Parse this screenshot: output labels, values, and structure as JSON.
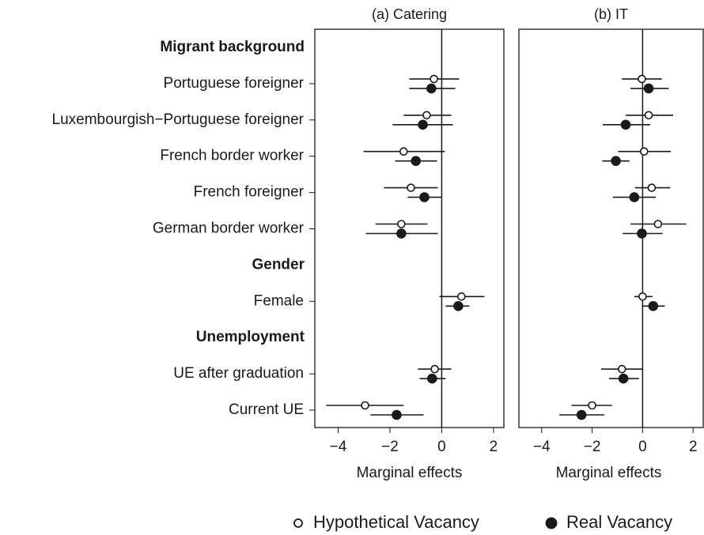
{
  "chart_data": {
    "type": "dotplot",
    "groups": [
      {
        "label": "Migrant background",
        "categories": [
          "Portuguese foreigner",
          "Luxembourgish−Portuguese foreigner",
          "French border worker",
          "French foreigner",
          "German border worker"
        ]
      },
      {
        "label": "Gender",
        "categories": [
          "Female"
        ]
      },
      {
        "label": "Unemployment",
        "categories": [
          "UE after graduation",
          "Current UE"
        ]
      }
    ],
    "xlim": [
      -4.9,
      2.4
    ],
    "xticks": [
      {
        "value": -4,
        "label": "−4"
      },
      {
        "value": -2,
        "label": "−2"
      },
      0,
      2
    ],
    "xlabel": "Marginal effects",
    "panels": [
      {
        "title": "(a) Catering",
        "series": [
          {
            "name": "Hypothetical Vacancy",
            "marker": "open",
            "color": "#1a1a1a",
            "values": [
              -0.3,
              -0.58,
              -1.47,
              -1.19,
              -1.56,
              0.76,
              -0.27,
              -2.96
            ],
            "lower": [
              -1.25,
              -1.47,
              -3.02,
              -2.23,
              -2.56,
              -0.09,
              -0.92,
              -4.46
            ],
            "upper": [
              0.67,
              0.37,
              0.12,
              -0.15,
              -0.55,
              1.65,
              0.37,
              -1.47
            ]
          },
          {
            "name": "Real Vacancy",
            "marker": "filled",
            "color": "#1a1a1a",
            "values": [
              -0.4,
              -0.73,
              -1.0,
              -0.67,
              -1.56,
              0.64,
              -0.37,
              -1.74
            ],
            "lower": [
              -1.25,
              -1.9,
              -1.8,
              -1.31,
              -2.93,
              0.15,
              -0.85,
              -2.75
            ],
            "upper": [
              0.52,
              0.43,
              -0.18,
              0.0,
              -0.15,
              1.07,
              0.15,
              -0.7
            ]
          }
        ]
      },
      {
        "title": "(b) IT",
        "series": [
          {
            "name": "Hypothetical Vacancy",
            "marker": "open",
            "color": "#1a1a1a",
            "values": [
              -0.03,
              0.24,
              0.06,
              0.36,
              0.61,
              0.0,
              -0.82,
              -2.0
            ],
            "lower": [
              -0.82,
              -0.67,
              -0.97,
              -0.3,
              -0.48,
              -0.33,
              -1.64,
              -2.82
            ],
            "upper": [
              0.76,
              1.21,
              1.12,
              1.09,
              1.73,
              0.39,
              0.0,
              -1.21
            ]
          },
          {
            "name": "Real Vacancy",
            "marker": "filled",
            "color": "#1a1a1a",
            "values": [
              0.24,
              -0.67,
              -1.06,
              -0.33,
              -0.03,
              0.42,
              -0.76,
              -2.42
            ],
            "lower": [
              -0.48,
              -1.58,
              -1.6,
              -1.18,
              -0.79,
              -0.03,
              -1.33,
              -3.3
            ],
            "upper": [
              1.03,
              0.3,
              -0.52,
              0.52,
              0.79,
              0.88,
              -0.15,
              -1.52
            ]
          }
        ]
      }
    ]
  }
}
